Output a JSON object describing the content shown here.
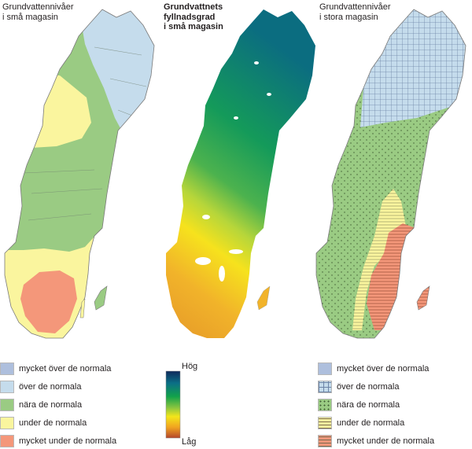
{
  "panels": [
    {
      "title_lines": [
        "Grundvattennivåer",
        "i små magasin"
      ]
    },
    {
      "title_lines": [
        "Grundvattnets",
        "fyllnadsgrad",
        "i små magasin"
      ]
    },
    {
      "title_lines": [
        "Grundvattennivåer",
        "i stora magasin"
      ]
    }
  ],
  "legend_left": [
    {
      "label": "mycket över de normala",
      "color": "#aebfdd"
    },
    {
      "label": "över de normala",
      "color": "#c5dcec"
    },
    {
      "label": "nära de normala",
      "color": "#9acb83"
    },
    {
      "label": "under de normala",
      "color": "#faf59e"
    },
    {
      "label": "mycket under de normala",
      "color": "#f4977a"
    }
  ],
  "legend_right": [
    {
      "label": "mycket över de normala",
      "color": "#aebfdd",
      "pattern": "dense-grid"
    },
    {
      "label": "över de normala",
      "color": "#c5dcec",
      "pattern": "grid"
    },
    {
      "label": "nära de normala",
      "color": "#9acb83",
      "pattern": "dots"
    },
    {
      "label": "under de normala",
      "color": "#faf59e",
      "pattern": "horizontal-lines"
    },
    {
      "label": "mycket under de normala",
      "color": "#f4977a",
      "pattern": "horizontal-lines"
    }
  ],
  "ramp": {
    "top_label": "Hög",
    "bottom_label": "Låg",
    "colors": [
      "#0e2a5c",
      "#0b6f86",
      "#12a24a",
      "#8cc63f",
      "#f3e61a",
      "#f1a320",
      "#b4462b"
    ]
  }
}
